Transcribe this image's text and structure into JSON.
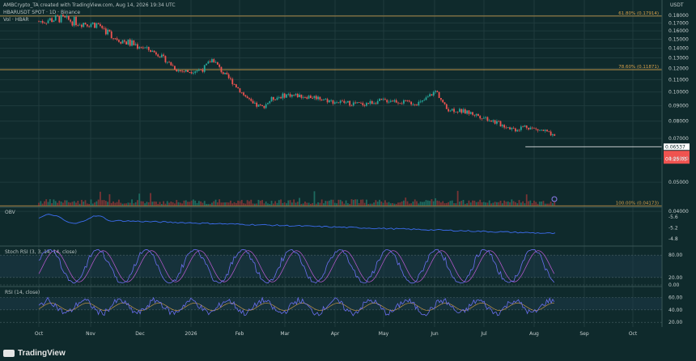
{
  "header": {
    "author_line": "AMBCrypto_TA created with TradingView.com, Aug 14, 2026 19:34 UTC",
    "symbol_line": "HBARUSDT SPOT · 1D · Binance",
    "volume_line": "Vol · HBAR",
    "currency": "USDT"
  },
  "brand": "TradingView",
  "colors": {
    "background": "#0f2a2c",
    "up": "#26a69a",
    "down": "#ef5350",
    "fib": "#d9a14a",
    "oscillator": "#6b6ff0",
    "signal": "#c05bd8"
  },
  "chart_data": [
    {
      "type": "candlestick",
      "title": "HBARUSDT SPOT · 1D · Binance",
      "scale": "log",
      "ylim": [
        0.0418,
        0.1905
      ],
      "y_ticks": [
        0.04,
        0.05,
        0.06,
        0.07,
        0.08,
        0.09,
        0.1,
        0.11,
        0.12,
        0.13,
        0.14,
        0.15,
        0.16,
        0.17,
        0.18
      ],
      "y_tick_labels": [
        "0.04000",
        "0.05000",
        "0.06000",
        "0.07000",
        "0.08000",
        "0.09000",
        "0.10000",
        "0.11000",
        "0.12000",
        "0.13000",
        "0.14000",
        "0.15000",
        "0.16000",
        "0.17000",
        "0.18000"
      ],
      "x_labels": [
        "Oct",
        "Nov",
        "Dec",
        "2026",
        "Feb",
        "Mar",
        "Apr",
        "May",
        "Jun",
        "Jul",
        "Aug",
        "Sep",
        "Oct"
      ],
      "price_path": [
        {
          "x": 0,
          "y": 0.172
        },
        {
          "x": 8,
          "y": 0.176
        },
        {
          "x": 16,
          "y": 0.171
        },
        {
          "x": 24,
          "y": 0.168
        },
        {
          "x": 30,
          "y": 0.153
        },
        {
          "x": 36,
          "y": 0.146
        },
        {
          "x": 42,
          "y": 0.141
        },
        {
          "x": 48,
          "y": 0.134
        },
        {
          "x": 52,
          "y": 0.126
        },
        {
          "x": 56,
          "y": 0.118
        },
        {
          "x": 60,
          "y": 0.117
        },
        {
          "x": 66,
          "y": 0.119
        },
        {
          "x": 70,
          "y": 0.129
        },
        {
          "x": 74,
          "y": 0.116
        },
        {
          "x": 78,
          "y": 0.108
        },
        {
          "x": 82,
          "y": 0.099
        },
        {
          "x": 86,
          "y": 0.091
        },
        {
          "x": 90,
          "y": 0.089
        },
        {
          "x": 94,
          "y": 0.095
        },
        {
          "x": 100,
          "y": 0.098
        },
        {
          "x": 106,
          "y": 0.097
        },
        {
          "x": 112,
          "y": 0.096
        },
        {
          "x": 118,
          "y": 0.093
        },
        {
          "x": 124,
          "y": 0.092
        },
        {
          "x": 130,
          "y": 0.091
        },
        {
          "x": 136,
          "y": 0.093
        },
        {
          "x": 142,
          "y": 0.094
        },
        {
          "x": 148,
          "y": 0.092
        },
        {
          "x": 154,
          "y": 0.092
        },
        {
          "x": 160,
          "y": 0.101
        },
        {
          "x": 164,
          "y": 0.088
        },
        {
          "x": 168,
          "y": 0.087
        },
        {
          "x": 174,
          "y": 0.085
        },
        {
          "x": 180,
          "y": 0.082
        },
        {
          "x": 186,
          "y": 0.078
        },
        {
          "x": 192,
          "y": 0.075
        },
        {
          "x": 196,
          "y": 0.077
        },
        {
          "x": 200,
          "y": 0.075
        },
        {
          "x": 204,
          "y": 0.074
        },
        {
          "x": 208,
          "y": 0.07
        }
      ],
      "series": [
        {
          "name": "OBV",
          "values": []
        }
      ],
      "levels": [
        {
          "label": "61.80% (0.17914)",
          "value": 0.17914
        },
        {
          "label": "78.60% (0.11871)",
          "value": 0.11871
        },
        {
          "label": "100.00% (0.04173)",
          "value": 0.04173
        }
      ],
      "last_price": "0.06537",
      "horizontal_line": 0.0657,
      "countdown": "04:25:05",
      "legend": "top-left"
    },
    {
      "type": "line",
      "title": "OBV",
      "y_tick_labels": [
        "-4.8",
        "-5.2",
        "-5.6"
      ],
      "y_ticks": [
        4.8,
        5.2,
        5.6
      ],
      "ylim": [
        4.6,
        5.9
      ]
    },
    {
      "type": "line",
      "title": "Stoch RSI (3, 3, 14, 14, close)",
      "y_ticks": [
        0,
        20,
        80
      ],
      "y_tick_labels": [
        "0.00",
        "20.00",
        "80.00"
      ],
      "ylim": [
        0,
        100
      ]
    },
    {
      "type": "line",
      "title": "RSI (14, close)",
      "y_ticks": [
        20,
        40,
        60
      ],
      "y_tick_labels": [
        "20.00",
        "40.00",
        "60.00"
      ],
      "ylim": [
        15,
        75
      ]
    }
  ]
}
